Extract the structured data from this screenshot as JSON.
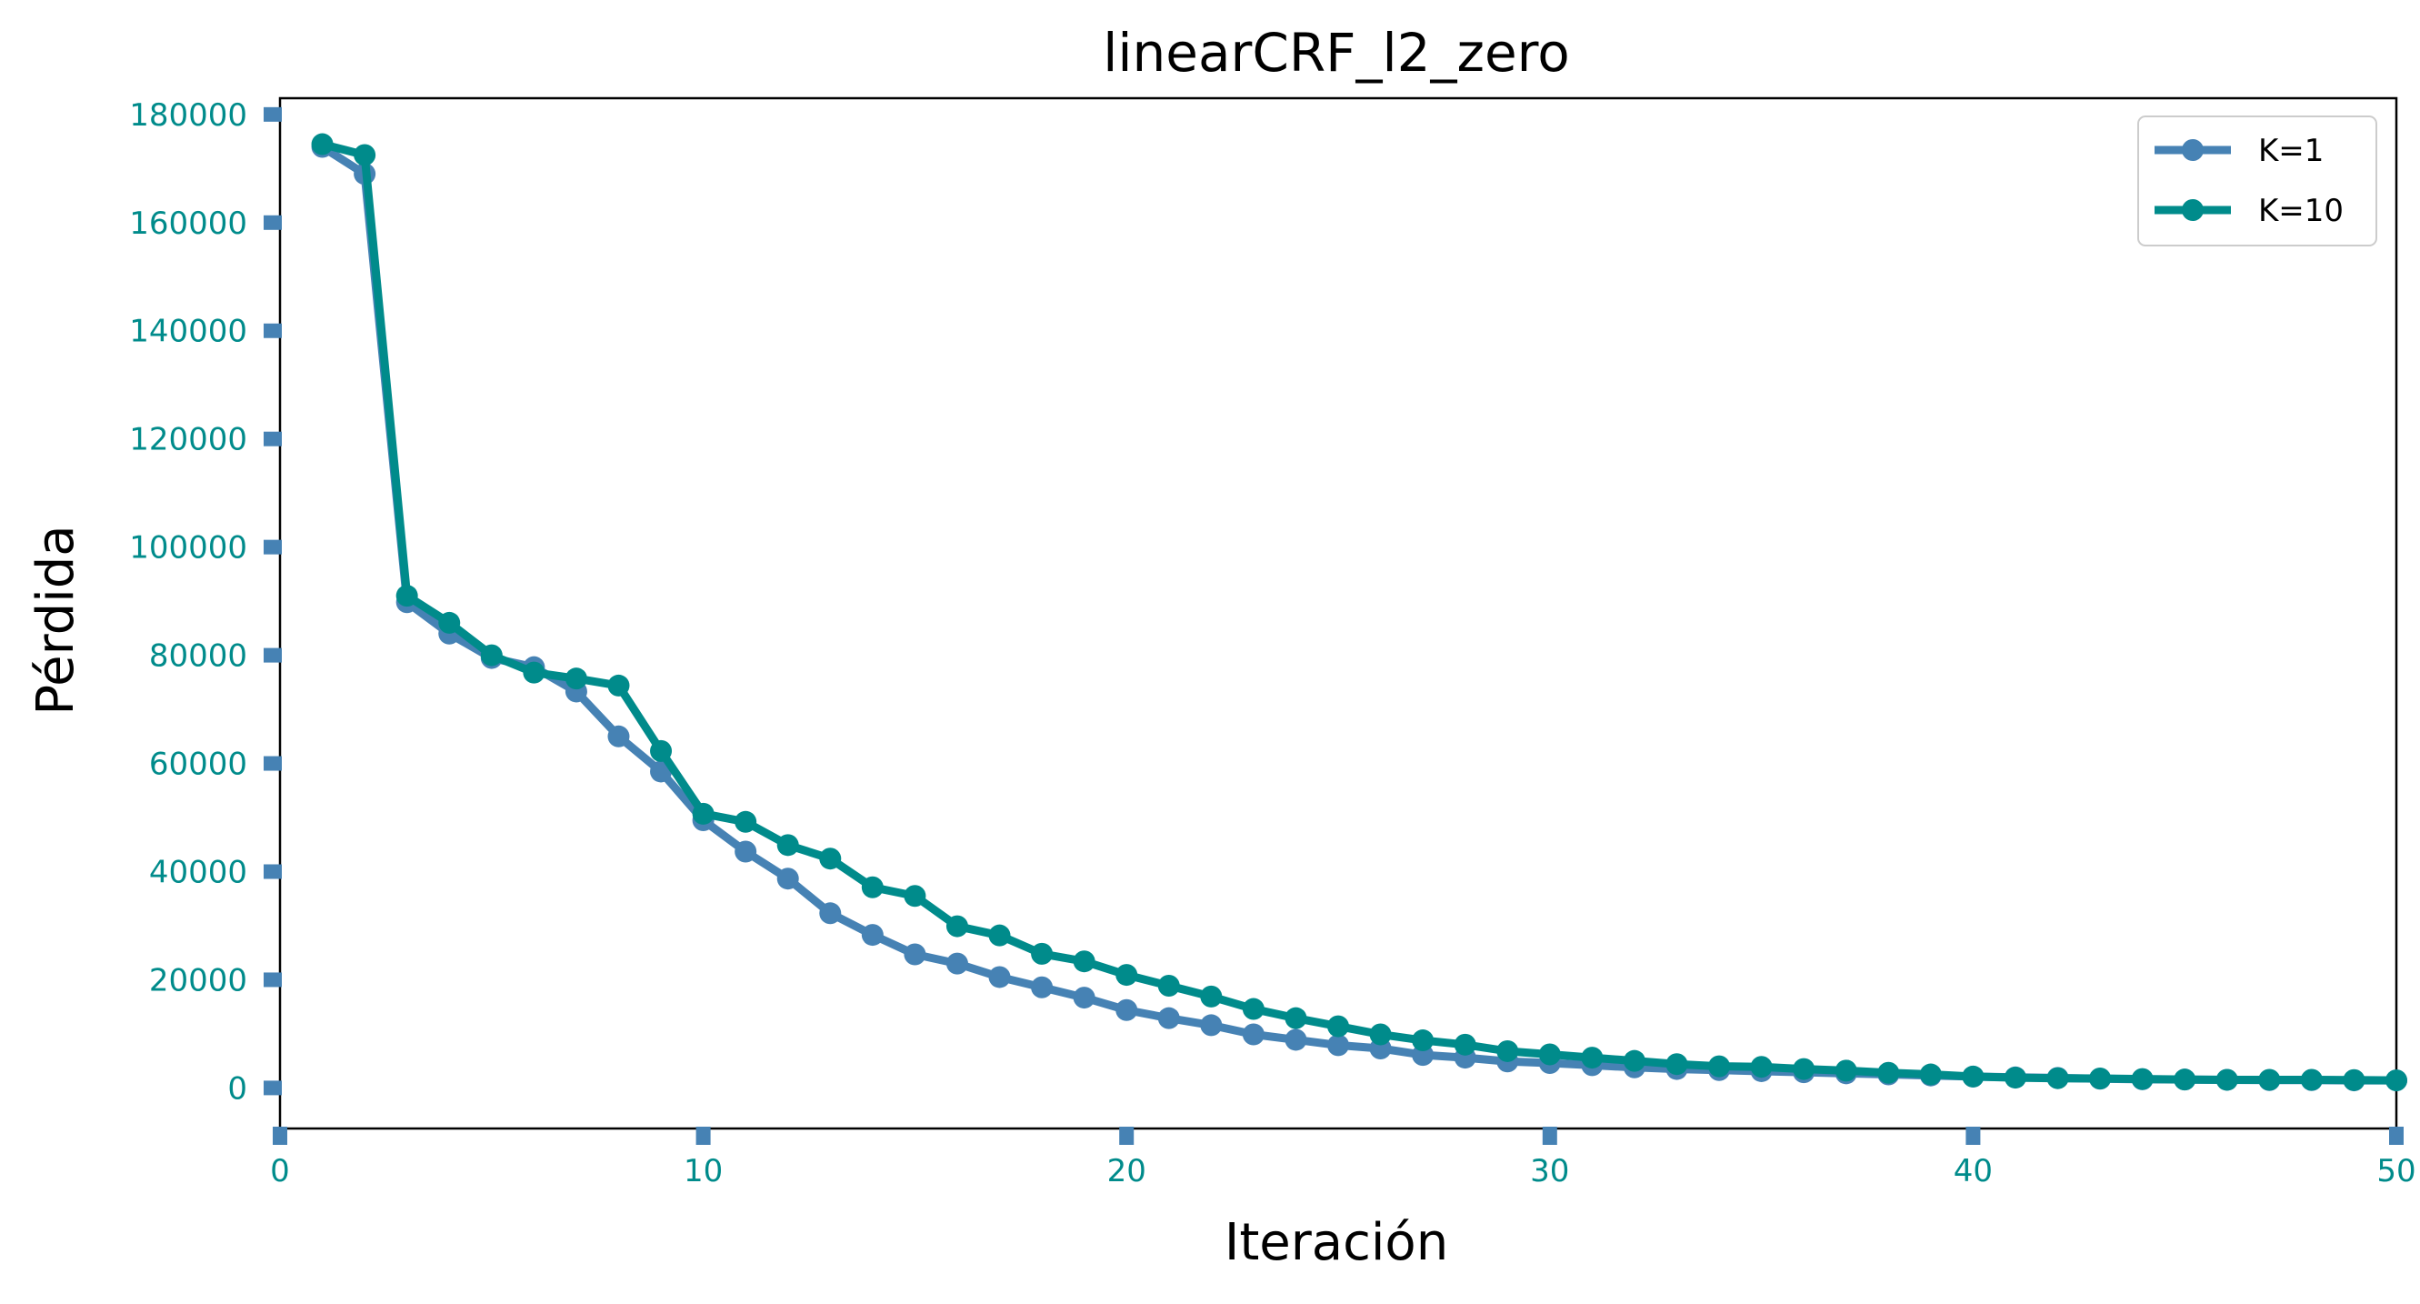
{
  "chart_data": {
    "type": "line",
    "title": "linearCRF_l2_zero",
    "xlabel": "Iteración",
    "ylabel": "Pérdida",
    "xlim": [
      0,
      50
    ],
    "ylim": [
      -7500,
      183000
    ],
    "xticks": [
      0,
      10,
      20,
      30,
      40,
      50
    ],
    "yticks": [
      0,
      20000,
      40000,
      60000,
      80000,
      100000,
      120000,
      140000,
      160000,
      180000
    ],
    "grid": false,
    "legend_position": "top-right",
    "colors": {
      "tick_label": "#008b8b",
      "tick_mark": "#4682b4",
      "axes": "#000000"
    },
    "series": [
      {
        "name": "K=1",
        "color": "#4682b4",
        "x": [
          1,
          2,
          3,
          4,
          5,
          6,
          7,
          8,
          9,
          10,
          11,
          12,
          13,
          14,
          15,
          16,
          17,
          18,
          19,
          20,
          21,
          22,
          23,
          24,
          25,
          26,
          27,
          28,
          29,
          30,
          31,
          32,
          33,
          34,
          35,
          36,
          37,
          38,
          39,
          40,
          41,
          42,
          43,
          44,
          45,
          46,
          47,
          48,
          49,
          50
        ],
        "values": [
          174000,
          169000,
          89800,
          84000,
          79500,
          77800,
          73300,
          65000,
          58500,
          49500,
          43700,
          38700,
          32300,
          28300,
          24700,
          23000,
          20500,
          18600,
          16700,
          14400,
          12900,
          11600,
          9900,
          8900,
          7900,
          7300,
          6100,
          5600,
          4900,
          4600,
          4200,
          3800,
          3500,
          3300,
          3100,
          2900,
          2700,
          2500,
          2300,
          2100,
          1950,
          1850,
          1700,
          1600,
          1550,
          1500,
          1450,
          1450,
          1400,
          1400
        ]
      },
      {
        "name": "K=10",
        "color": "#008b8b",
        "x": [
          1,
          2,
          3,
          4,
          5,
          6,
          7,
          8,
          9,
          10,
          11,
          12,
          13,
          14,
          15,
          16,
          17,
          18,
          19,
          20,
          21,
          22,
          23,
          24,
          25,
          26,
          27,
          28,
          29,
          30,
          31,
          32,
          33,
          34,
          35,
          36,
          37,
          38,
          39,
          40,
          41,
          42,
          43,
          44,
          45,
          46,
          47,
          48,
          49,
          50
        ],
        "values": [
          174500,
          172500,
          91000,
          86000,
          80000,
          76800,
          75700,
          74400,
          62300,
          50700,
          49200,
          44900,
          42400,
          37100,
          35500,
          29900,
          28200,
          24800,
          23400,
          20900,
          18900,
          16900,
          14600,
          12900,
          11400,
          9900,
          8800,
          8000,
          6800,
          6200,
          5600,
          5000,
          4400,
          4000,
          3900,
          3500,
          3200,
          2800,
          2500,
          2100,
          1900,
          1800,
          1750,
          1650,
          1550,
          1500,
          1500,
          1500,
          1450,
          1400
        ]
      }
    ]
  }
}
